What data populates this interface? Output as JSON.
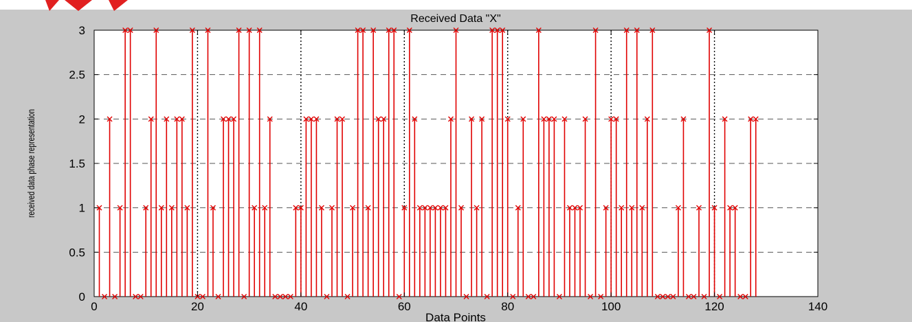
{
  "figure": {
    "background": "#c8c8c8",
    "plot_background": "#ffffff",
    "series_color": "#e00000",
    "decoration_color": "#e12020"
  },
  "chart_data": {
    "type": "stem",
    "title": "Received Data \"X\"",
    "xlabel": "Data Points",
    "ylabel": "received data phase representation",
    "xlim": [
      0,
      140
    ],
    "ylim": [
      0,
      3
    ],
    "xticks": [
      "0",
      "20",
      "40",
      "60",
      "80",
      "100",
      "120",
      "140"
    ],
    "yticks": [
      "0",
      "0.5",
      "1",
      "1.5",
      "2",
      "2.5",
      "3"
    ],
    "grid": "horizontal-dashed",
    "block_separators_x": [
      20,
      40,
      60,
      80,
      100,
      120
    ],
    "marker": "x",
    "series": [
      {
        "x": [
          1,
          2,
          3,
          4,
          5,
          6,
          7,
          8,
          9,
          10,
          11,
          12,
          13,
          14,
          15,
          16,
          17,
          18,
          19,
          20,
          21,
          22,
          23,
          24,
          25,
          26,
          27,
          28,
          29,
          30,
          31,
          32,
          33,
          34,
          35,
          36,
          37,
          38,
          39,
          40,
          41,
          42,
          43,
          44,
          45,
          46,
          47,
          48,
          49,
          50,
          51,
          52,
          53,
          54,
          55,
          56,
          57,
          58,
          59,
          60,
          61,
          62,
          63,
          64,
          65,
          66,
          67,
          68,
          69,
          70,
          71,
          72,
          73,
          74,
          75,
          76,
          77,
          78,
          79,
          80,
          81,
          82,
          83,
          84,
          85,
          86,
          87,
          88,
          89,
          90,
          91,
          92,
          93,
          94,
          95,
          96,
          97,
          98,
          99,
          100,
          101,
          102,
          103,
          104,
          105,
          106,
          107,
          108,
          109,
          110,
          111,
          112,
          113,
          114,
          115,
          116,
          117,
          118,
          119,
          120,
          121,
          122,
          123,
          124,
          125,
          126,
          127,
          128
        ],
        "values": [
          1,
          0,
          2,
          0,
          1,
          3,
          3,
          0,
          0,
          1,
          2,
          3,
          1,
          2,
          1,
          2,
          2,
          1,
          3,
          0,
          0,
          3,
          1,
          0,
          2,
          2,
          2,
          3,
          0,
          3,
          1,
          3,
          1,
          2,
          0,
          0,
          0,
          0,
          1,
          1,
          2,
          2,
          2,
          1,
          0,
          1,
          2,
          2,
          0,
          1,
          3,
          3,
          1,
          3,
          2,
          2,
          3,
          3,
          0,
          1,
          3,
          2,
          1,
          1,
          1,
          1,
          1,
          1,
          2,
          3,
          1,
          0,
          2,
          1,
          2,
          0,
          3,
          3,
          3,
          2,
          0,
          1,
          2,
          0,
          0,
          3,
          2,
          2,
          2,
          0,
          2,
          1,
          1,
          1,
          2,
          0,
          3,
          0,
          1,
          2,
          2,
          1,
          3,
          1,
          3,
          1,
          2,
          3,
          0,
          0,
          0,
          0,
          1,
          2,
          0,
          0,
          1,
          0,
          3,
          1,
          0,
          2,
          1,
          1,
          0,
          0,
          2,
          2
        ]
      }
    ]
  }
}
